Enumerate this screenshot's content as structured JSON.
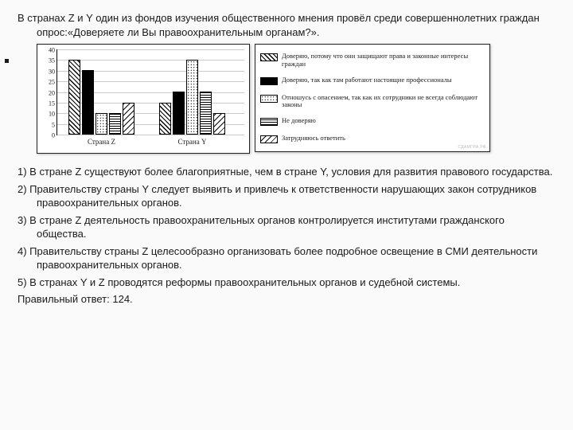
{
  "question": "В странах Z и Y один из фондов изучения общественного мнения провёл среди совершеннолетних граждан опрос:«Доверяете ли Вы правоохранительным органам?».",
  "chart": {
    "ylim": [
      0,
      40
    ],
    "ytick_step": 5,
    "yticks": [
      0,
      5,
      10,
      15,
      20,
      25,
      30,
      35,
      40
    ],
    "groups": [
      {
        "label": "Страна Z",
        "values": [
          35,
          30,
          10,
          10,
          15
        ]
      },
      {
        "label": "Страна Y",
        "values": [
          15,
          20,
          35,
          20,
          10
        ]
      }
    ],
    "series_patterns": [
      "diag",
      "solid",
      "dots",
      "horiz",
      "diag2"
    ]
  },
  "legend": [
    "Доверяю, потому что они защищают права и законные интересы граждан",
    "Доверяю, так как там работают настоящие профессионалы",
    "Отношусь с опасением, так как их сотрудники не всегда соблюдают законы",
    "Не доверяю",
    "Затрудняюсь ответить"
  ],
  "watermark": "СДАМГИА.РФ",
  "options": [
    "1) В стране Z существуют более благоприятные, чем в стране Y, условия для развития правового государства.",
    "2) Правительству страны Y следует выявить и привлечь к ответственности нарушающих закон сотрудников правоохранительных органов.",
    "3) В стране Z деятельность правоохранительных органов контролируется институтами гражданского общества.",
    "4) Правительству страны Z целесообразно организовать более подробное освещение в СМИ деятельности правоохранительных органов.",
    "5) В странах Y и Z проводятся реформы правоохранительных органов и судебной системы."
  ],
  "answer": "Правильный ответ: 124."
}
